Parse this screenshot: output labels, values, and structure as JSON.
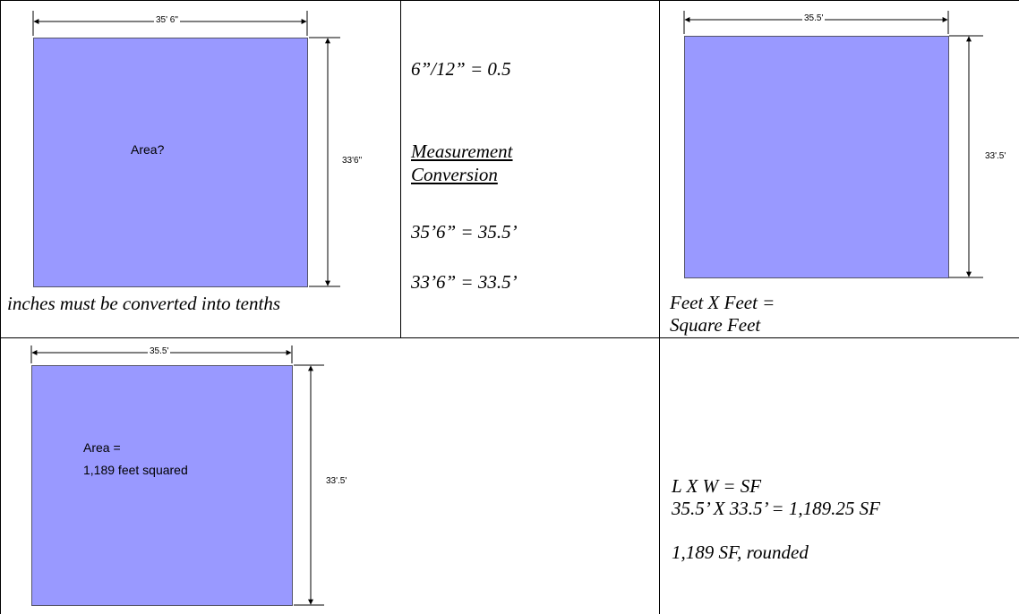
{
  "cell_top_left": {
    "width_label": "35' 6\"",
    "height_label": "33'6\"",
    "area_label": "Area?",
    "caption": "inches must be converted into tenths"
  },
  "cell_top_middle": {
    "line1": "6”/12” = 0.5",
    "heading_line1": "Measurement",
    "heading_line2": "Conversion",
    "line2": "35’6” = 35.5’",
    "line3": "33’6” = 33.5’"
  },
  "cell_top_right": {
    "width_label": "35.5'",
    "height_label": "33'.5'",
    "caption_line1": "Feet X Feet =",
    "caption_line2": "Square Feet"
  },
  "cell_bottom_left": {
    "width_label": "35.5'",
    "height_label": "33'.5'",
    "area_line1": "Area =",
    "area_line2": "1,189 feet squared"
  },
  "cell_bottom_right": {
    "formula": "L X W = SF",
    "calculation": "35.5’ X 33.5’ = 1,189.25 SF",
    "result": "1,189 SF, rounded"
  },
  "colors": {
    "fill": "#9999ff",
    "lines": "#000000"
  }
}
